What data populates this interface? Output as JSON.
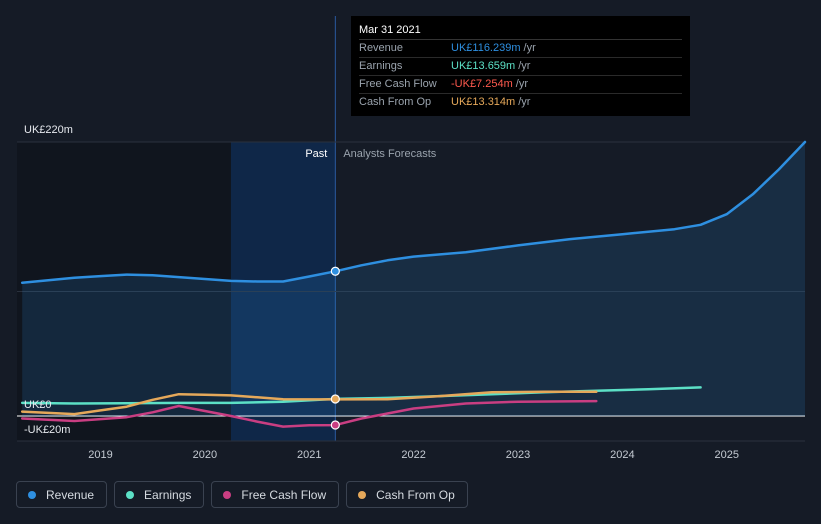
{
  "chart_data": {
    "type": "line",
    "currency_unit": "UK£",
    "y_ticks": [
      {
        "value": 220,
        "label": "UK£220m"
      },
      {
        "value": 0,
        "label": "UK£0"
      },
      {
        "value": -20,
        "label": "-UK£20m"
      }
    ],
    "ylim": [
      -25,
      220
    ],
    "xlim": [
      2018.2,
      2025.75
    ],
    "x_ticks": [
      {
        "value": 2019,
        "label": "2019"
      },
      {
        "value": 2020,
        "label": "2020"
      },
      {
        "value": 2021,
        "label": "2021"
      },
      {
        "value": 2022,
        "label": "2022"
      },
      {
        "value": 2023,
        "label": "2023"
      },
      {
        "value": 2024,
        "label": "2024"
      },
      {
        "value": 2025,
        "label": "2025"
      }
    ],
    "past_label": "Past",
    "forecast_label": "Analysts Forecasts",
    "divider_x": 2021.25,
    "highlight_start": 2020.25,
    "grid": true,
    "series": [
      {
        "name": "Revenue",
        "color": "#2e8fe0",
        "area": true,
        "points": [
          [
            2018.25,
            107
          ],
          [
            2018.5,
            109
          ],
          [
            2018.75,
            111
          ],
          [
            2019.0,
            112.3
          ],
          [
            2019.25,
            113.5
          ],
          [
            2019.5,
            113
          ],
          [
            2019.75,
            111.5
          ],
          [
            2020.0,
            110
          ],
          [
            2020.25,
            108.5
          ],
          [
            2020.5,
            108
          ],
          [
            2020.75,
            108
          ],
          [
            2021.0,
            112
          ],
          [
            2021.25,
            116.2
          ],
          [
            2021.5,
            121
          ],
          [
            2021.75,
            125
          ],
          [
            2022.0,
            128
          ],
          [
            2022.5,
            131.5
          ],
          [
            2023.0,
            137
          ],
          [
            2023.5,
            142
          ],
          [
            2024.0,
            146
          ],
          [
            2024.5,
            150
          ],
          [
            2024.75,
            153.5
          ],
          [
            2025.0,
            162
          ],
          [
            2025.25,
            178
          ],
          [
            2025.5,
            198
          ],
          [
            2025.75,
            220
          ]
        ]
      },
      {
        "name": "Earnings",
        "color": "#5ce0c6",
        "area": false,
        "points": [
          [
            2018.25,
            10.5
          ],
          [
            2018.75,
            10
          ],
          [
            2019.25,
            10.2
          ],
          [
            2019.75,
            10.5
          ],
          [
            2020.25,
            10.5
          ],
          [
            2020.75,
            11.5
          ],
          [
            2021.25,
            13.7
          ],
          [
            2021.75,
            14.5
          ],
          [
            2022.25,
            16
          ],
          [
            2022.75,
            17.5
          ],
          [
            2023.25,
            19
          ],
          [
            2023.75,
            20.2
          ],
          [
            2024.25,
            21.5
          ],
          [
            2024.75,
            23
          ]
        ]
      },
      {
        "name": "Free Cash Flow",
        "color": "#c93e82",
        "area": false,
        "points": [
          [
            2018.25,
            -2
          ],
          [
            2018.75,
            -4
          ],
          [
            2019.0,
            -2.5
          ],
          [
            2019.25,
            -1
          ],
          [
            2019.5,
            3
          ],
          [
            2019.75,
            8
          ],
          [
            2020.0,
            4
          ],
          [
            2020.25,
            0
          ],
          [
            2020.5,
            -4.5
          ],
          [
            2020.75,
            -8.5
          ],
          [
            2021.0,
            -7.5
          ],
          [
            2021.25,
            -7.3
          ],
          [
            2021.5,
            -2
          ],
          [
            2021.75,
            2
          ],
          [
            2022.0,
            6
          ],
          [
            2022.5,
            10
          ],
          [
            2023.0,
            11.5
          ],
          [
            2023.75,
            12
          ]
        ]
      },
      {
        "name": "Cash From Op",
        "color": "#e5a85a",
        "area": false,
        "points": [
          [
            2018.25,
            3.5
          ],
          [
            2018.75,
            1.5
          ],
          [
            2019.0,
            4.5
          ],
          [
            2019.25,
            7.5
          ],
          [
            2019.5,
            13
          ],
          [
            2019.75,
            17.5
          ],
          [
            2020.0,
            17
          ],
          [
            2020.25,
            16.5
          ],
          [
            2020.5,
            15
          ],
          [
            2020.75,
            13.5
          ],
          [
            2021.25,
            13.3
          ],
          [
            2021.75,
            13.5
          ],
          [
            2022.25,
            16
          ],
          [
            2022.75,
            19
          ],
          [
            2023.25,
            19.5
          ],
          [
            2023.75,
            19.5
          ]
        ]
      }
    ]
  },
  "tooltip": {
    "date": "Mar 31 2021",
    "rows": [
      {
        "label": "Revenue",
        "value": "UK£116.239m",
        "unit": "/yr",
        "color": "#2e8fe0"
      },
      {
        "label": "Earnings",
        "value": "UK£13.659m",
        "unit": "/yr",
        "color": "#5ce0c6"
      },
      {
        "label": "Free Cash Flow",
        "value": "-UK£7.254m",
        "unit": "/yr",
        "color": "#ff5a4e"
      },
      {
        "label": "Cash From Op",
        "value": "UK£13.314m",
        "unit": "/yr",
        "color": "#e5a85a"
      }
    ]
  },
  "legend": [
    {
      "label": "Revenue",
      "color": "#2e8fe0"
    },
    {
      "label": "Earnings",
      "color": "#5ce0c6"
    },
    {
      "label": "Free Cash Flow",
      "color": "#c93e82"
    },
    {
      "label": "Cash From Op",
      "color": "#e5a85a"
    }
  ],
  "marker_values": {
    "x": 2021.25,
    "revenue": 116.239,
    "earnings": 13.659,
    "fcf": -7.254
  }
}
